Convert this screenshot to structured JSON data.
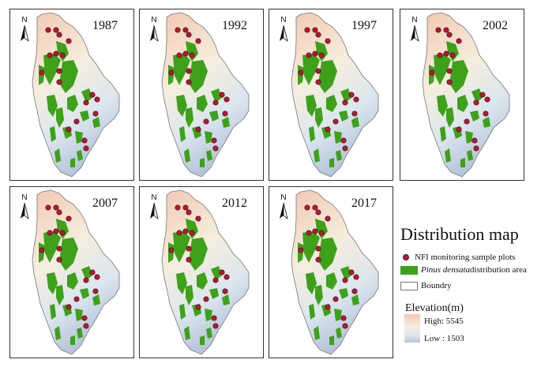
{
  "panels": [
    {
      "year": "1987"
    },
    {
      "year": "1992"
    },
    {
      "year": "1997"
    },
    {
      "year": "2002"
    },
    {
      "year": "2007"
    },
    {
      "year": "2012"
    },
    {
      "year": "2017"
    }
  ],
  "north_label": "N",
  "legend": {
    "title": "Distribution map",
    "items": [
      {
        "label": "NFI monitoring sample plots",
        "color": "#c8102e"
      },
      {
        "label_italic": "Pinus densata",
        "label": "distribution area",
        "color": "#3da11a"
      },
      {
        "label": "Boundry"
      }
    ],
    "elevation": {
      "title": "Elevation(m)",
      "high": "High: 5545",
      "low": "Low : 1503",
      "color_high": "#f2c9b3",
      "color_low": "#b7c6dc"
    }
  },
  "colors": {
    "forest": "#3da11a",
    "plot_fill": "#c8102e",
    "border": "#333333"
  }
}
